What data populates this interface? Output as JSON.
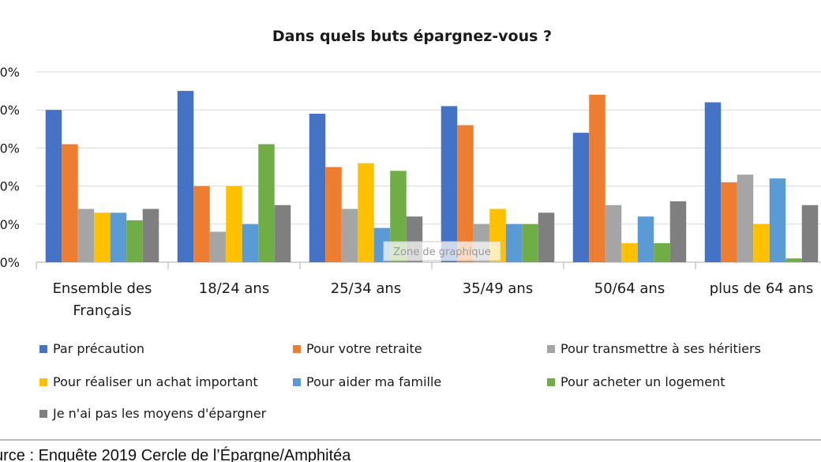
{
  "chart_data": {
    "type": "bar",
    "title": "Dans quels buts épargnez-vous ?",
    "xlabel": "",
    "ylabel": "",
    "ylim": [
      0,
      50
    ],
    "y_tick_labels": [
      "0%",
      "0%",
      "0%",
      "0%",
      "0%",
      "0%"
    ],
    "grid": true,
    "legend_position": "bottom",
    "categories": [
      [
        "Ensemble des",
        "Français"
      ],
      [
        "18/24 ans"
      ],
      [
        "25/34 ans"
      ],
      [
        "35/49 ans"
      ],
      [
        "50/64 ans"
      ],
      [
        "plus de 64 ans"
      ]
    ],
    "series": [
      {
        "name": "Par précaution",
        "color": "#4472C4",
        "values": [
          40,
          45,
          39,
          41,
          34,
          42
        ]
      },
      {
        "name": "Pour votre retraite",
        "color": "#ED7D31",
        "values": [
          31,
          20,
          25,
          36,
          44,
          21
        ]
      },
      {
        "name": "Pour transmettre à ses héritiers",
        "color": "#A5A5A5",
        "values": [
          14,
          8,
          14,
          10,
          15,
          23
        ]
      },
      {
        "name": "Pour réaliser un achat important",
        "color": "#FFC000",
        "values": [
          13,
          20,
          26,
          14,
          5,
          10
        ]
      },
      {
        "name": "Pour aider ma famille",
        "color": "#5B9BD5",
        "values": [
          13,
          10,
          9,
          10,
          12,
          22
        ]
      },
      {
        "name": "Pour acheter un logement",
        "color": "#70AD47",
        "values": [
          11,
          31,
          24,
          10,
          5,
          1
        ]
      },
      {
        "name": "Je n'ai pas les moyens d'épargner",
        "color": "#7F7F7F",
        "values": [
          14,
          15,
          12,
          13,
          16,
          15
        ]
      }
    ],
    "tooltip": "Zone de graphique"
  },
  "source": "urce : Enquête 2019 Cercle de l’Épargne/Amphitéa"
}
